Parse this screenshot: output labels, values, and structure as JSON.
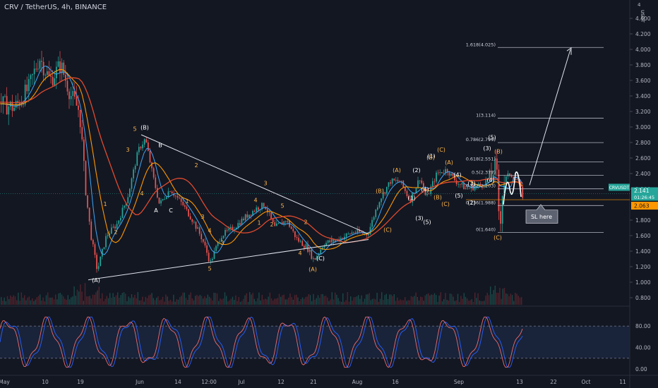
{
  "header": {
    "symbol_line": "CRV / TetherUS, 4h, BINANCE"
  },
  "currency": {
    "top_value": "4",
    "unit": "USDT"
  },
  "chart_data": {
    "type": "candlestick",
    "price_axis": {
      "ticks": [
        "4.400",
        "4.200",
        "4.000",
        "3.800",
        "3.600",
        "3.400",
        "3.200",
        "3.000",
        "2.800",
        "2.600",
        "2.400",
        "2.200",
        "1.800",
        "1.600",
        "1.400",
        "1.200",
        "1.000",
        "0.800"
      ],
      "range": [
        0.8,
        4.55
      ]
    },
    "oscillator_axis": {
      "ticks": [
        "80.00",
        "40.00",
        "0.00"
      ],
      "range": [
        0,
        100
      ]
    },
    "time_axis": {
      "ticks": [
        "May",
        "10",
        "19",
        "Jun",
        "14",
        "12:00",
        "Jul",
        "12",
        "21",
        "Aug",
        "16",
        "Sep",
        "13",
        "22",
        "Oct",
        "11"
      ]
    },
    "price_labels": {
      "symbol": "CRVUSDT",
      "last": "2.141",
      "countdown": "01:26:45",
      "level": "2.063"
    },
    "fibonacci": [
      {
        "label": "1.618(4.025)",
        "price": 4.025
      },
      {
        "label": "1(3.114)",
        "price": 3.114
      },
      {
        "label": "0.786(2.799)",
        "price": 2.799
      },
      {
        "label": "0.618(2.551)",
        "price": 2.551
      },
      {
        "label": "0.5(2.377)",
        "price": 2.377
      },
      {
        "label": "0.382(2.203)",
        "price": 2.203
      },
      {
        "label": "0.236(1.988)",
        "price": 1.988
      },
      {
        "label": "0(1.640)",
        "price": 1.64
      }
    ],
    "callout": "SL here",
    "wave_labels": {
      "white": [
        "(A)",
        "(B)",
        "B",
        "A",
        "C",
        "(C)",
        "(1)",
        "(2)",
        "(3)",
        "(4)",
        "(5)",
        "(3)",
        "(5)",
        "(4)",
        "(1)",
        "(2)",
        "(3)",
        "(4)",
        "(5)"
      ],
      "orange": [
        "5",
        "3",
        "4",
        "1",
        "2",
        "2",
        "1",
        "3",
        "4",
        "5",
        "3",
        "4",
        "1",
        "2",
        "5",
        "3",
        "4",
        "2",
        "(A)",
        "(B)",
        "(C)",
        "(A)",
        "(B)",
        "(C)",
        "(A)",
        "(B)",
        "(C)"
      ]
    }
  }
}
